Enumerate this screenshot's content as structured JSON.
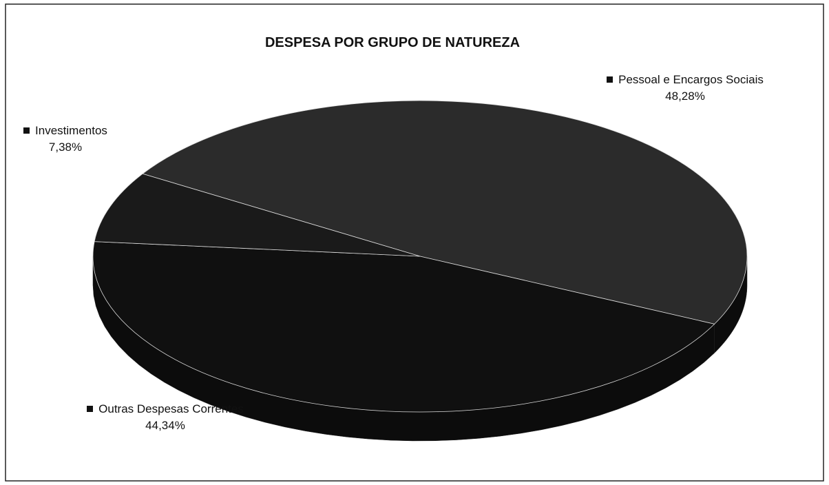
{
  "chart_data": {
    "type": "pie",
    "title": "DESPESA POR GRUPO DE NATUREZA",
    "categories": [
      "Pessoal e Encargos Sociais",
      "Outras Despesas Correntes",
      "Investimentos"
    ],
    "values": [
      48.28,
      44.34,
      7.38
    ],
    "value_labels": [
      "48,28%",
      "44,34%",
      "7,38%"
    ],
    "colors": [
      "#2b2b2b",
      "#101010",
      "#1a1a1a"
    ]
  }
}
